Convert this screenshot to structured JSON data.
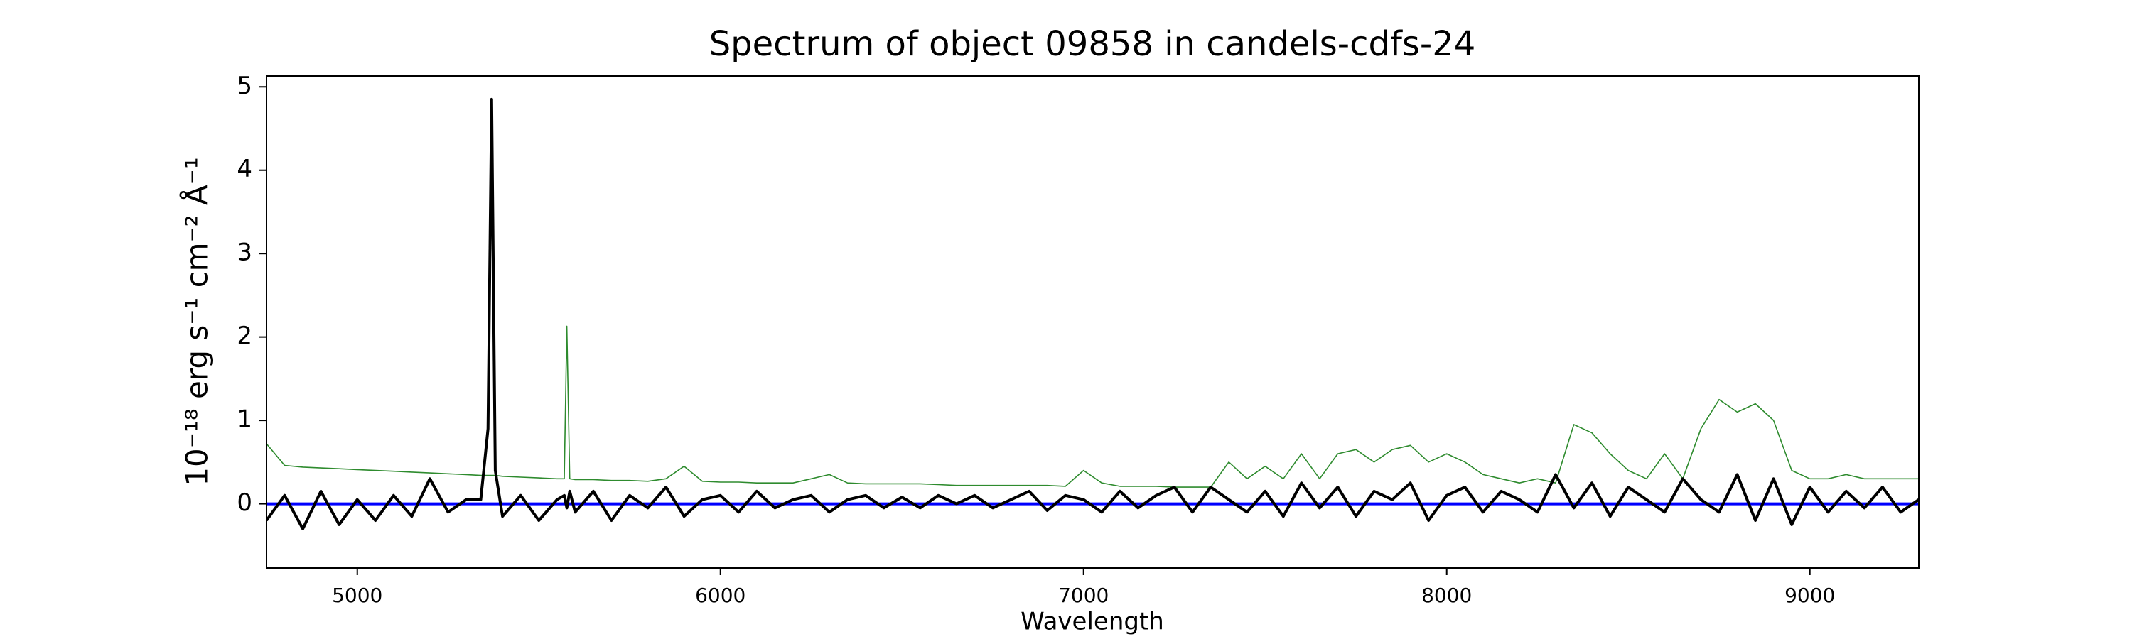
{
  "chart_data": {
    "type": "line",
    "title": "Spectrum of object 09858 in candels-cdfs-24",
    "xlabel": "Wavelength",
    "ylabel": "10⁻¹⁸ erg s⁻¹ cm⁻² Å⁻¹",
    "xlim": [
      4750,
      9300
    ],
    "ylim": [
      -0.77,
      5.13
    ],
    "xticks": [
      5000,
      6000,
      7000,
      8000,
      9000
    ],
    "yticks": [
      0,
      1,
      2,
      3,
      4,
      5
    ],
    "x": [
      4750,
      4800,
      4850,
      4900,
      4950,
      5000,
      5050,
      5100,
      5150,
      5200,
      5250,
      5300,
      5340,
      5360,
      5370,
      5380,
      5400,
      5450,
      5500,
      5550,
      5570,
      5577,
      5585,
      5600,
      5650,
      5700,
      5750,
      5800,
      5850,
      5900,
      5950,
      6000,
      6050,
      6100,
      6150,
      6200,
      6250,
      6300,
      6350,
      6400,
      6450,
      6500,
      6550,
      6600,
      6650,
      6700,
      6750,
      6800,
      6850,
      6900,
      6950,
      7000,
      7050,
      7100,
      7150,
      7200,
      7250,
      7300,
      7350,
      7400,
      7450,
      7500,
      7550,
      7600,
      7650,
      7700,
      7750,
      7800,
      7850,
      7900,
      7950,
      8000,
      8050,
      8100,
      8150,
      8200,
      8250,
      8300,
      8350,
      8400,
      8450,
      8500,
      8550,
      8600,
      8650,
      8700,
      8750,
      8800,
      8850,
      8900,
      8950,
      9000,
      9050,
      9100,
      9150,
      9200,
      9250,
      9300
    ],
    "series": [
      {
        "color": "#2e8b2e",
        "width": 1.6,
        "values": [
          0.72,
          0.46,
          0.44,
          0.43,
          0.42,
          0.41,
          0.4,
          0.39,
          0.38,
          0.37,
          0.36,
          0.35,
          0.34,
          0.34,
          0.34,
          0.34,
          0.33,
          0.32,
          0.31,
          0.3,
          0.3,
          2.13,
          0.3,
          0.29,
          0.29,
          0.28,
          0.28,
          0.27,
          0.3,
          0.45,
          0.27,
          0.26,
          0.26,
          0.25,
          0.25,
          0.25,
          0.3,
          0.35,
          0.25,
          0.24,
          0.24,
          0.24,
          0.24,
          0.23,
          0.22,
          0.22,
          0.22,
          0.22,
          0.22,
          0.22,
          0.21,
          0.4,
          0.25,
          0.21,
          0.21,
          0.21,
          0.2,
          0.2,
          0.2,
          0.5,
          0.3,
          0.45,
          0.3,
          0.6,
          0.3,
          0.6,
          0.65,
          0.5,
          0.65,
          0.7,
          0.5,
          0.6,
          0.5,
          0.35,
          0.3,
          0.25,
          0.3,
          0.25,
          0.95,
          0.85,
          0.6,
          0.4,
          0.3,
          0.6,
          0.3,
          0.9,
          1.25,
          1.1,
          1.2,
          1.0,
          0.4,
          0.3,
          0.3,
          0.35,
          0.3,
          0.3,
          0.3,
          0.3
        ]
      },
      {
        "color": "#0000ff",
        "width": 4,
        "x": [
          4750,
          9300
        ],
        "values": [
          0,
          0
        ]
      },
      {
        "color": "#000000",
        "width": 4,
        "values": [
          -0.2,
          0.1,
          -0.3,
          0.15,
          -0.25,
          0.05,
          -0.2,
          0.1,
          -0.15,
          0.3,
          -0.1,
          0.05,
          0.05,
          0.9,
          4.85,
          0.4,
          -0.15,
          0.1,
          -0.2,
          0.05,
          0.1,
          -0.05,
          0.15,
          -0.1,
          0.15,
          -0.2,
          0.1,
          -0.05,
          0.2,
          -0.15,
          0.05,
          0.1,
          -0.1,
          0.15,
          -0.05,
          0.05,
          0.1,
          -0.1,
          0.05,
          0.1,
          -0.05,
          0.08,
          -0.05,
          0.1,
          0.0,
          0.1,
          -0.05,
          0.05,
          0.15,
          -0.08,
          0.1,
          0.05,
          -0.1,
          0.15,
          -0.05,
          0.1,
          0.2,
          -0.1,
          0.2,
          0.05,
          -0.1,
          0.15,
          -0.15,
          0.25,
          -0.05,
          0.2,
          -0.15,
          0.15,
          0.05,
          0.25,
          -0.2,
          0.1,
          0.2,
          -0.1,
          0.15,
          0.05,
          -0.1,
          0.35,
          -0.05,
          0.25,
          -0.15,
          0.2,
          0.05,
          -0.1,
          0.3,
          0.05,
          -0.1,
          0.35,
          -0.2,
          0.3,
          -0.25,
          0.2,
          -0.1,
          0.15,
          -0.05,
          0.2,
          -0.1,
          0.05
        ]
      }
    ]
  }
}
